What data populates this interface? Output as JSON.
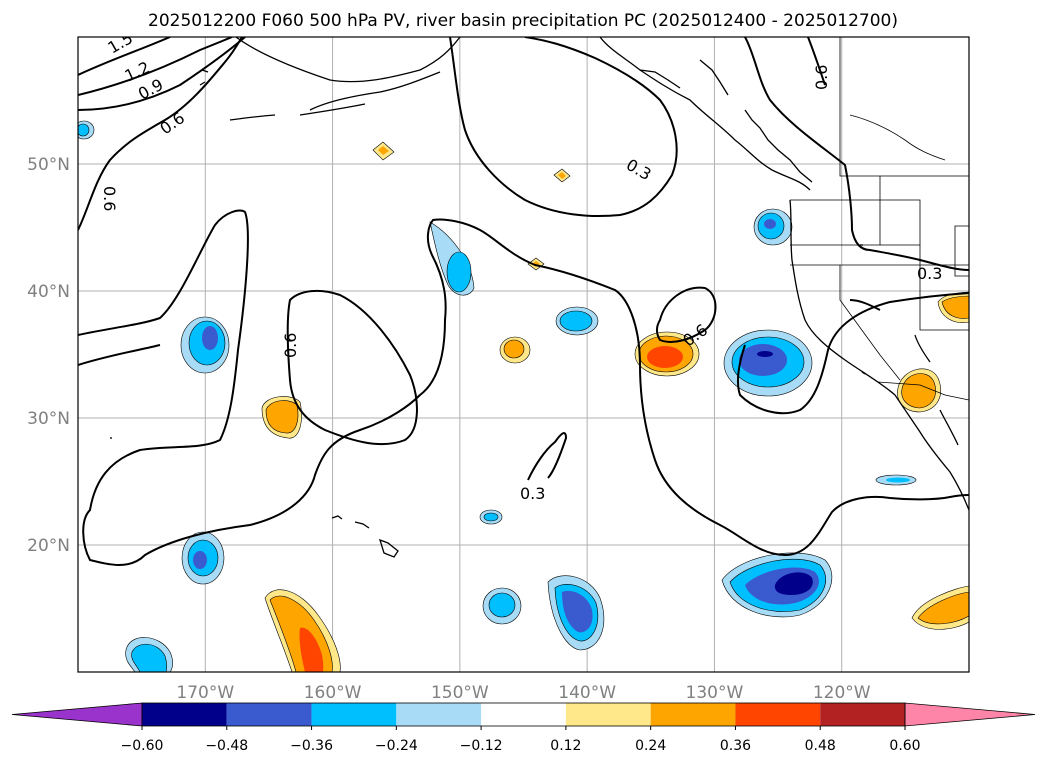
{
  "title": "2025012200 F060 500 hPa PV, river basin precipitation PC (2025012400 - 2025012700)",
  "map": {
    "lon_ticks": [
      {
        "lon": -170,
        "label": "170°W"
      },
      {
        "lon": -160,
        "label": "160°W"
      },
      {
        "lon": -150,
        "label": "150°W"
      },
      {
        "lon": -140,
        "label": "140°W"
      },
      {
        "lon": -130,
        "label": "130°W"
      },
      {
        "lon": -120,
        "label": "120°W"
      }
    ],
    "lat_ticks": [
      {
        "lat": 20,
        "label": "20°N"
      },
      {
        "lat": 30,
        "label": "30°N"
      },
      {
        "lat": 40,
        "label": "40°N"
      },
      {
        "lat": 50,
        "label": "50°N"
      }
    ],
    "contour_labels": [
      "1.5",
      "1.2",
      "0.9",
      "0.6",
      "0.6",
      "0.3",
      "0.6",
      "0.6",
      "0.6",
      "0.3",
      "0.3"
    ]
  },
  "colorbar": {
    "extend": "both",
    "ticks": [
      "−0.60",
      "−0.48",
      "−0.36",
      "−0.24",
      "−0.12",
      "0.12",
      "0.24",
      "0.36",
      "0.48",
      "0.60"
    ],
    "colors": [
      "#9933cc",
      "#00008b",
      "#3a5bd0",
      "#00bfff",
      "#a8dcf6",
      "#ffffff",
      "#ffe88a",
      "#ffa500",
      "#ff4500",
      "#b22222",
      "#ff85a8"
    ]
  }
}
